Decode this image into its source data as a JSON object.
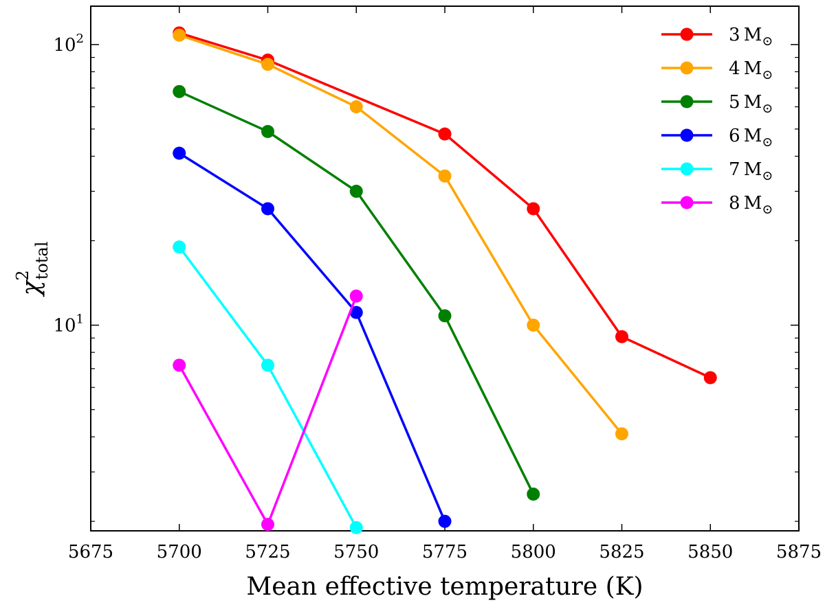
{
  "chart_data": {
    "type": "line",
    "title": "",
    "xlabel": "Mean effective temperature (K)",
    "ylabel": {
      "symbol": "χ",
      "superscript": "2",
      "subscript": "total"
    },
    "xlim": [
      5675,
      5875
    ],
    "ylim": [
      1.85,
      137
    ],
    "yscale": "log",
    "x_ticks": [
      5675,
      5700,
      5725,
      5750,
      5775,
      5800,
      5825,
      5850,
      5875
    ],
    "x_tick_labels": [
      "5675",
      "5700",
      "5725",
      "5750",
      "5775",
      "5800",
      "5825",
      "5850",
      "5875"
    ],
    "y_major_ticks": [
      {
        "value": 10,
        "base": "10",
        "exp": "1"
      },
      {
        "value": 100,
        "base": "10",
        "exp": "2"
      }
    ],
    "y_minor_ticks": [
      2,
      3,
      4,
      5,
      6,
      7,
      8,
      9,
      20,
      30,
      40,
      50,
      60,
      70,
      80,
      90
    ],
    "grid": false,
    "legend_position": "top-right",
    "legend_unit": "M",
    "legend_unit_symbol": "⊙",
    "series": [
      {
        "name": "3",
        "color": "#ff0000",
        "x": [
          5700,
          5725,
          5775,
          5800,
          5825,
          5850
        ],
        "y": [
          110,
          88,
          48,
          26,
          9.1,
          6.5
        ]
      },
      {
        "name": "4",
        "color": "#ffa500",
        "x": [
          5700,
          5725,
          5750,
          5775,
          5800,
          5825
        ],
        "y": [
          108,
          85,
          60,
          34,
          10,
          4.1
        ]
      },
      {
        "name": "5",
        "color": "#008000",
        "x": [
          5700,
          5725,
          5750,
          5775,
          5800
        ],
        "y": [
          68,
          49,
          30,
          10.8,
          2.5
        ]
      },
      {
        "name": "6",
        "color": "#0000ff",
        "x": [
          5700,
          5725,
          5750,
          5775
        ],
        "y": [
          41,
          26,
          11.1,
          2
        ]
      },
      {
        "name": "7",
        "color": "#00ffff",
        "x": [
          5700,
          5725,
          5750
        ],
        "y": [
          19,
          7.2,
          1.9
        ]
      },
      {
        "name": "8",
        "color": "#ff00ff",
        "x": [
          5700,
          5725,
          5750
        ],
        "y": [
          7.2,
          1.95,
          12.7
        ]
      }
    ]
  }
}
